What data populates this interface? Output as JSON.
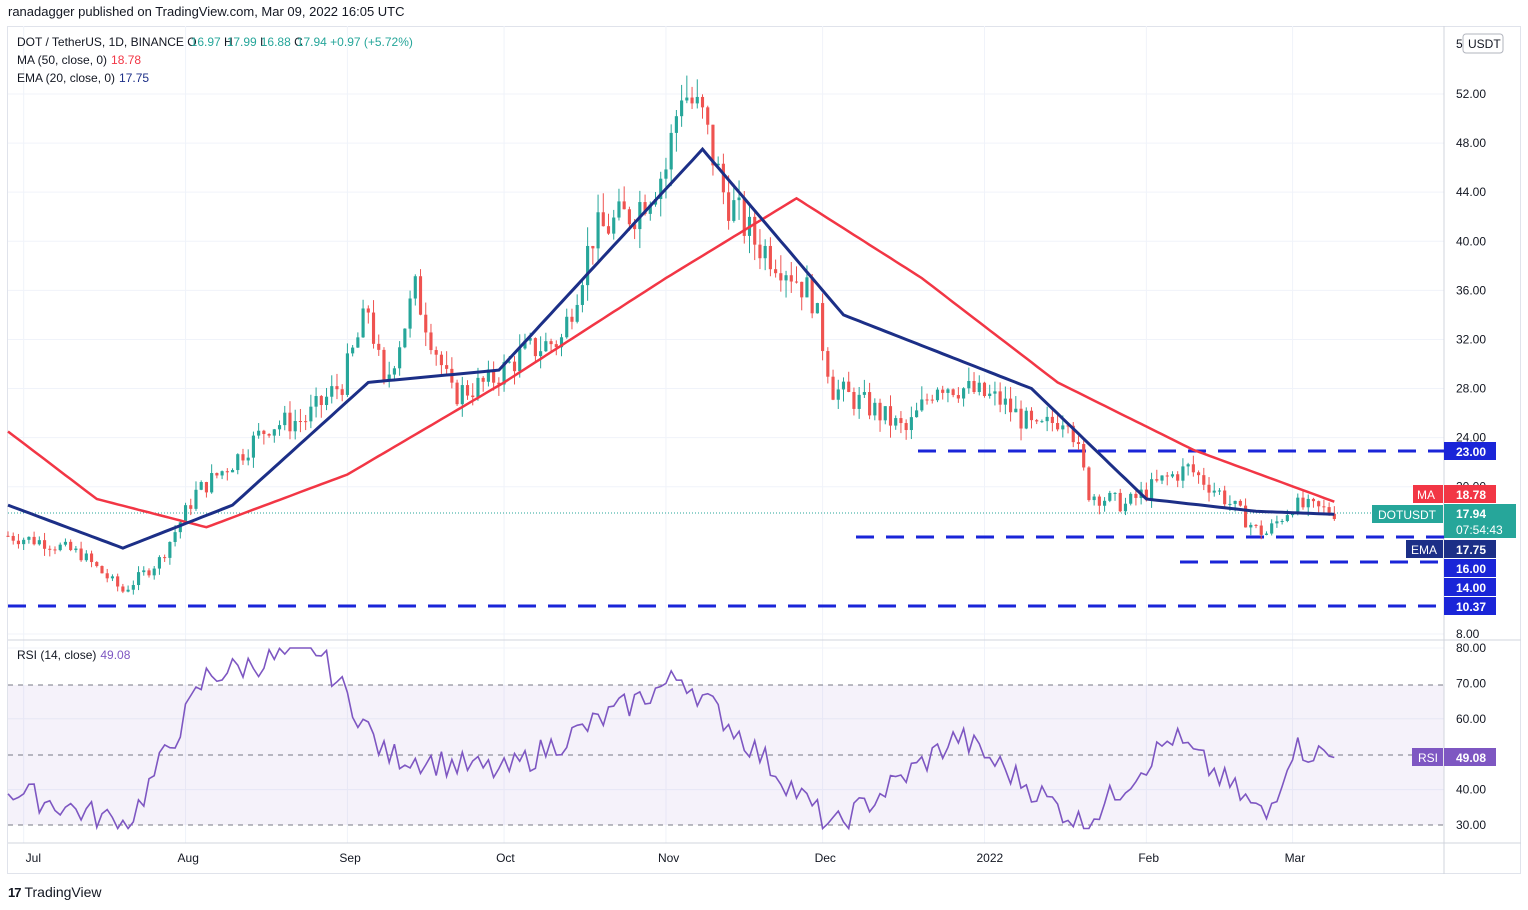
{
  "header": {
    "published_text": "ranadagger published on TradingView.com, Mar 09, 2022 16:05 UTC"
  },
  "legend": {
    "symbol": "DOT / TetherUS, 1D, BINANCE",
    "ohlc": {
      "o_label": "O",
      "o": "16.97",
      "h_label": "H",
      "h": "17.99",
      "l_label": "L",
      "l": "16.88",
      "c_label": "C",
      "c": "17.94",
      "change": "+0.97 (+5.72%)"
    },
    "ma_label": "MA (50, close, 0)",
    "ma_value": "18.78",
    "ema_label": "EMA (20, close, 0)",
    "ema_value": "17.75",
    "rsi_label": "RSI (14, close)",
    "rsi_value": "49.08"
  },
  "axis": {
    "currency": "USDT",
    "top_cut_label": "5",
    "price_ticks": [
      "52.00",
      "48.00",
      "44.00",
      "40.00",
      "36.00",
      "32.00",
      "28.00",
      "24.00",
      "20.00",
      "8.00"
    ],
    "rsi_ticks": [
      "80.00",
      "70.00",
      "60.00",
      "50.00",
      "40.00",
      "30.00"
    ],
    "time_labels": [
      "Jul",
      "Aug",
      "Sep",
      "Oct",
      "Nov",
      "Dec",
      "2022",
      "Feb",
      "Mar"
    ]
  },
  "price_badges": {
    "ma": {
      "label": "MA",
      "value": "18.78"
    },
    "price": {
      "label": "DOTUSDT",
      "value": "17.94",
      "countdown": "07:54:43"
    },
    "ema": {
      "label": "EMA",
      "value": "17.75"
    },
    "rsi": {
      "label": "RSI",
      "value": "49.08"
    },
    "levels": [
      "23.00",
      "16.00",
      "14.00",
      "10.37"
    ]
  },
  "footer": {
    "logo_text": "TradingView"
  },
  "colors": {
    "up": "#26a69a",
    "down": "#ef5350",
    "ma": "#f23645",
    "ema": "#1c2f87",
    "rsi": "#7e57c2",
    "level": "#1a25d8",
    "level_badge": "#1a25d8"
  },
  "chart_data": {
    "type": "candlestick",
    "title": "DOT / TetherUS, 1D, BINANCE",
    "x_range": [
      "2021-06-28",
      "2022-03-09"
    ],
    "y_range": [
      8,
      55
    ],
    "support_resistance_levels": [
      23.0,
      16.0,
      14.0,
      10.37
    ],
    "keypoints": [
      {
        "date": "2021-06-28",
        "close": 16.0
      },
      {
        "date": "2021-07-05",
        "close": 15.5
      },
      {
        "date": "2021-07-12",
        "close": 14.5
      },
      {
        "date": "2021-07-20",
        "close": 11.5
      },
      {
        "date": "2021-07-27",
        "close": 14.0
      },
      {
        "date": "2021-08-03",
        "close": 19.5
      },
      {
        "date": "2021-08-10",
        "close": 22.0
      },
      {
        "date": "2021-08-17",
        "close": 25.0
      },
      {
        "date": "2021-08-24",
        "close": 25.5
      },
      {
        "date": "2021-08-31",
        "close": 28.5
      },
      {
        "date": "2021-09-05",
        "close": 34.5
      },
      {
        "date": "2021-09-08",
        "close": 28.0
      },
      {
        "date": "2021-09-14",
        "close": 36.0
      },
      {
        "date": "2021-09-21",
        "close": 27.5
      },
      {
        "date": "2021-09-28",
        "close": 28.5
      },
      {
        "date": "2021-10-05",
        "close": 31.0
      },
      {
        "date": "2021-10-12",
        "close": 32.0
      },
      {
        "date": "2021-10-18",
        "close": 40.5
      },
      {
        "date": "2021-10-26",
        "close": 42.5
      },
      {
        "date": "2021-11-01",
        "close": 46.0
      },
      {
        "date": "2021-11-04",
        "close": 52.5
      },
      {
        "date": "2021-11-08",
        "close": 50.0
      },
      {
        "date": "2021-11-12",
        "close": 44.0
      },
      {
        "date": "2021-11-18",
        "close": 40.0
      },
      {
        "date": "2021-11-24",
        "close": 38.0
      },
      {
        "date": "2021-11-29",
        "close": 35.5
      },
      {
        "date": "2021-12-03",
        "close": 28.0
      },
      {
        "date": "2021-12-10",
        "close": 26.5
      },
      {
        "date": "2021-12-17",
        "close": 24.5
      },
      {
        "date": "2021-12-23",
        "close": 28.5
      },
      {
        "date": "2021-12-28",
        "close": 28.0
      },
      {
        "date": "2022-01-04",
        "close": 27.0
      },
      {
        "date": "2022-01-11",
        "close": 24.5
      },
      {
        "date": "2022-01-17",
        "close": 26.0
      },
      {
        "date": "2022-01-21",
        "close": 19.5
      },
      {
        "date": "2022-01-28",
        "close": 18.5
      },
      {
        "date": "2022-02-04",
        "close": 20.5
      },
      {
        "date": "2022-02-09",
        "close": 21.5
      },
      {
        "date": "2022-02-15",
        "close": 19.5
      },
      {
        "date": "2022-02-22",
        "close": 16.5
      },
      {
        "date": "2022-02-24",
        "close": 16.2
      },
      {
        "date": "2022-03-01",
        "close": 18.5
      },
      {
        "date": "2022-03-09",
        "close": 17.94
      }
    ],
    "indicators": {
      "ma50": [
        {
          "date": "2021-06-28",
          "value": 24.5
        },
        {
          "date": "2021-07-15",
          "value": 19.0
        },
        {
          "date": "2021-08-05",
          "value": 16.7
        },
        {
          "date": "2021-09-01",
          "value": 21.0
        },
        {
          "date": "2021-10-01",
          "value": 28.5
        },
        {
          "date": "2021-11-01",
          "value": 37.0
        },
        {
          "date": "2021-11-26",
          "value": 43.5
        },
        {
          "date": "2021-12-20",
          "value": 37.0
        },
        {
          "date": "2022-01-15",
          "value": 28.5
        },
        {
          "date": "2022-02-10",
          "value": 23.0
        },
        {
          "date": "2022-03-09",
          "value": 18.78
        }
      ],
      "ema20": [
        {
          "date": "2021-06-28",
          "value": 18.5
        },
        {
          "date": "2021-07-20",
          "value": 15.0
        },
        {
          "date": "2021-08-10",
          "value": 18.5
        },
        {
          "date": "2021-09-05",
          "value": 28.5
        },
        {
          "date": "2021-09-30",
          "value": 29.5
        },
        {
          "date": "2021-11-08",
          "value": 47.5
        },
        {
          "date": "2021-12-05",
          "value": 34.0
        },
        {
          "date": "2022-01-10",
          "value": 28.0
        },
        {
          "date": "2022-02-01",
          "value": 19.0
        },
        {
          "date": "2022-02-22",
          "value": 18.0
        },
        {
          "date": "2022-03-09",
          "value": 17.75
        }
      ],
      "rsi14": [
        {
          "date": "2021-06-28",
          "value": 40
        },
        {
          "date": "2021-07-21",
          "value": 30
        },
        {
          "date": "2021-08-05",
          "value": 72
        },
        {
          "date": "2021-08-26",
          "value": 80
        },
        {
          "date": "2021-09-08",
          "value": 50
        },
        {
          "date": "2021-10-01",
          "value": 45
        },
        {
          "date": "2021-11-04",
          "value": 72
        },
        {
          "date": "2021-12-03",
          "value": 29
        },
        {
          "date": "2021-12-27",
          "value": 55
        },
        {
          "date": "2022-01-20",
          "value": 30
        },
        {
          "date": "2022-02-06",
          "value": 55
        },
        {
          "date": "2022-02-24",
          "value": 32
        },
        {
          "date": "2022-03-01",
          "value": 52
        },
        {
          "date": "2022-03-09",
          "value": 49.08
        }
      ]
    }
  }
}
